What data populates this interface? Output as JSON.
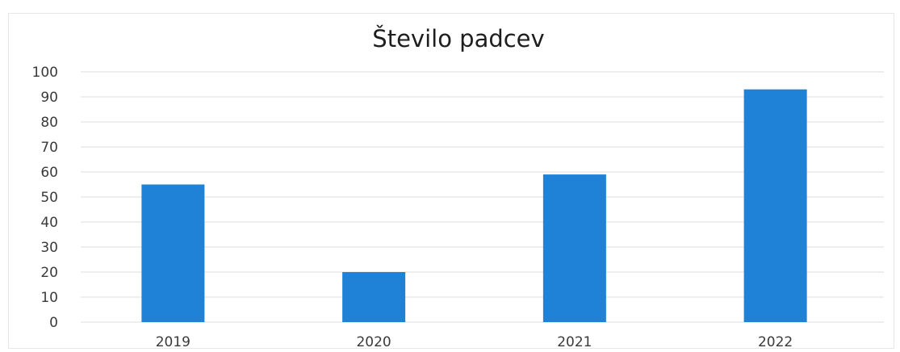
{
  "chart_data": {
    "type": "bar",
    "title": "Število padcev",
    "xlabel": "",
    "ylabel": "",
    "categories": [
      "2019",
      "2020",
      "2021",
      "2022"
    ],
    "values": [
      55,
      20,
      59,
      93
    ],
    "ylim": [
      0,
      100
    ],
    "yticks": [
      "0",
      "10",
      "20",
      "30",
      "40",
      "50",
      "60",
      "70",
      "80",
      "90",
      "100"
    ],
    "grid": true,
    "legend": "none"
  },
  "colors": {
    "bar": "#1f82d6",
    "gridline": "#e4e4e4",
    "axis_text": "#3a3a3a",
    "title_text": "#1e1e1e"
  }
}
